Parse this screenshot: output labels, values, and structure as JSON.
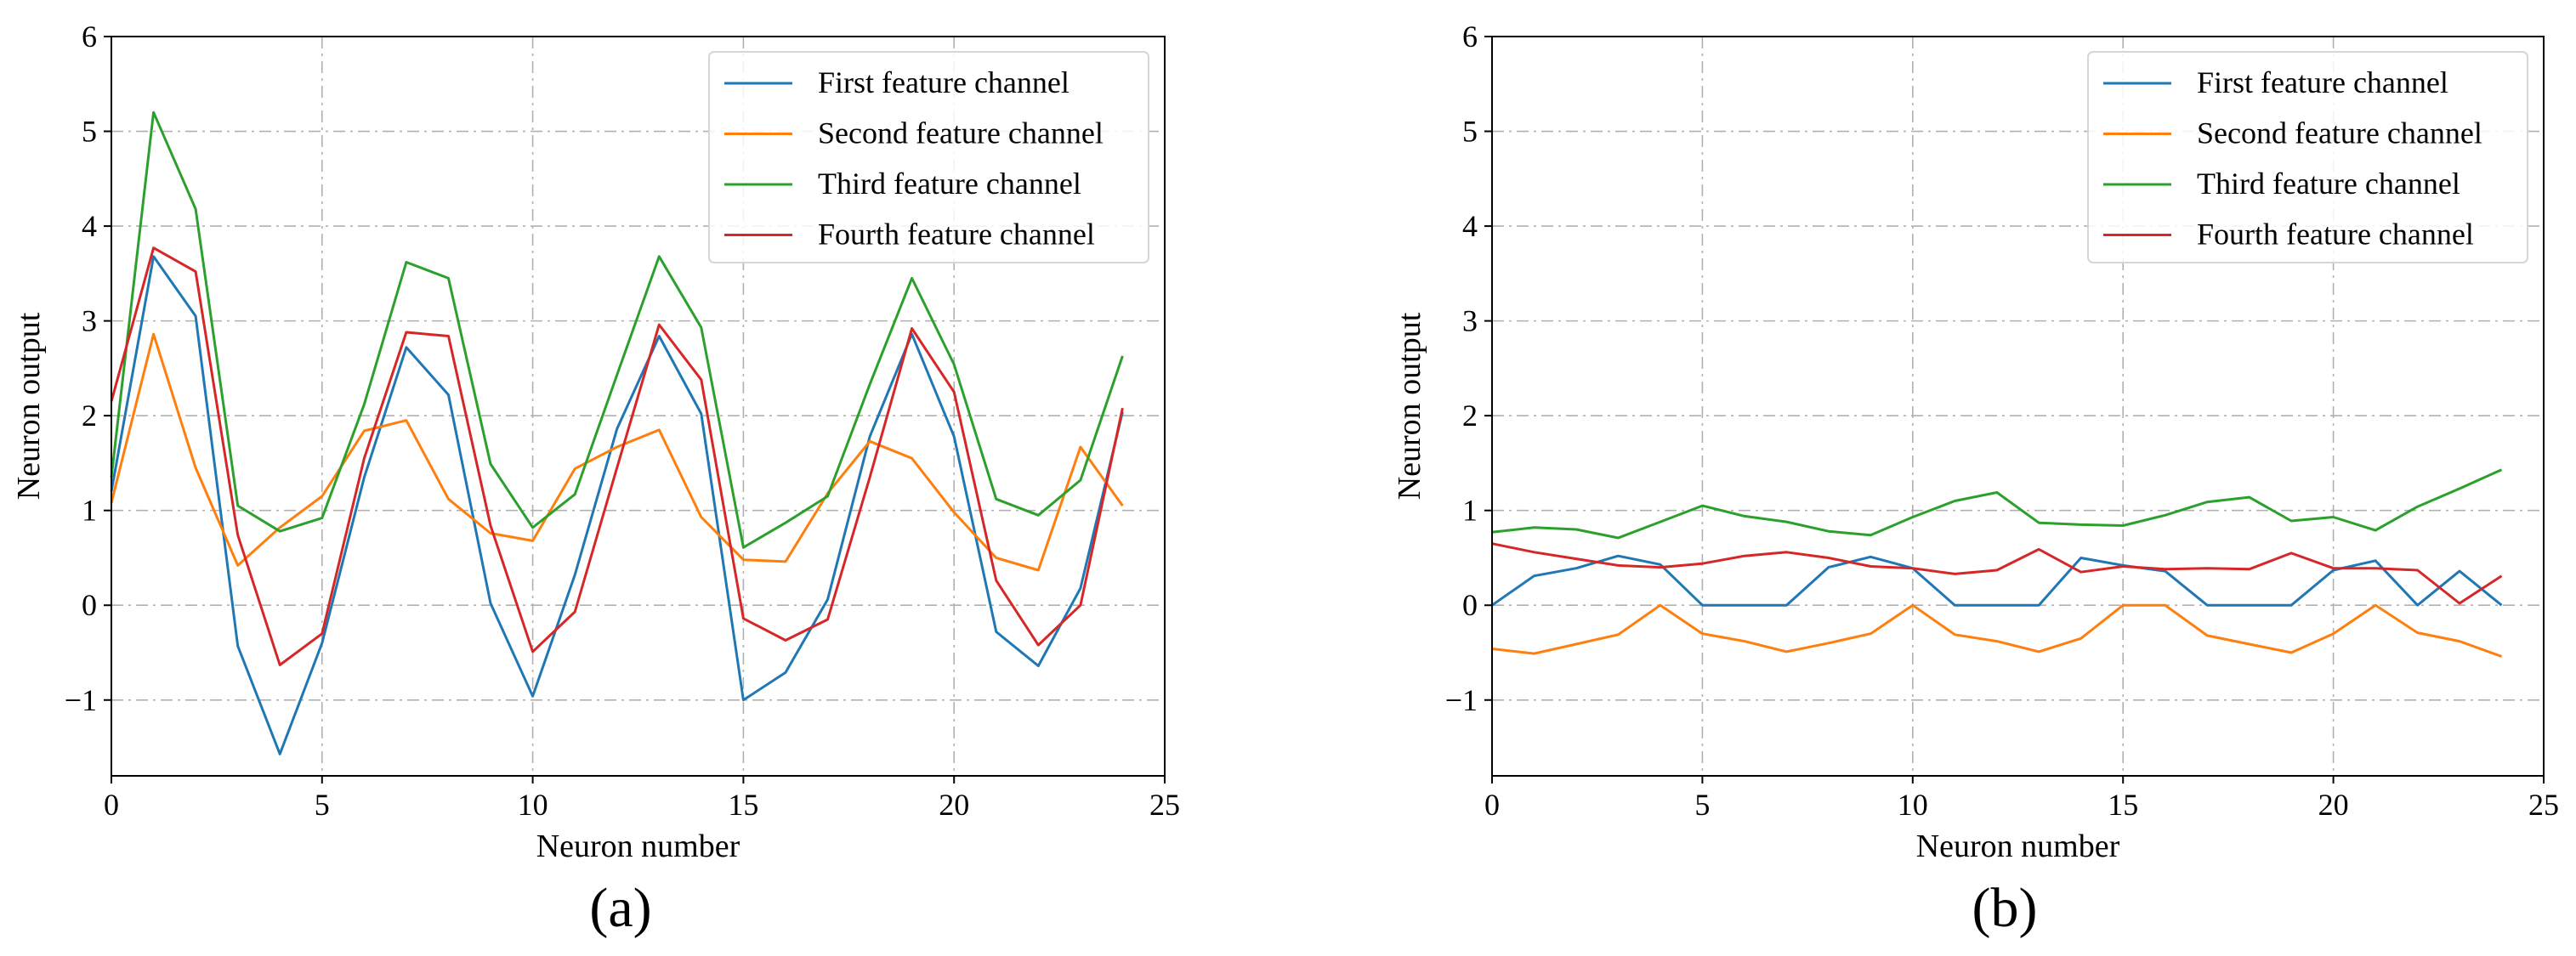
{
  "chart_data": [
    {
      "type": "line",
      "panel_label": "(a)",
      "title": "",
      "xlabel": "Neuron number",
      "ylabel": "Neuron output",
      "xlim": [
        0,
        25
      ],
      "ylim": [
        -1.8,
        6
      ],
      "xticks": [
        0,
        5,
        10,
        15,
        20,
        25
      ],
      "yticks": [
        -1,
        0,
        1,
        2,
        3,
        4,
        5,
        6
      ],
      "grid": true,
      "legend_position": "top-right",
      "x": [
        0,
        1,
        2,
        3,
        4,
        5,
        6,
        7,
        8,
        9,
        10,
        11,
        12,
        13,
        14,
        15,
        16,
        17,
        18,
        19,
        20,
        21,
        22,
        23,
        24
      ],
      "series": [
        {
          "name": "First feature channel",
          "color": "#1f77b4",
          "values": [
            1.2,
            3.68,
            3.05,
            -0.43,
            -1.57,
            -0.4,
            1.35,
            2.72,
            2.22,
            0.02,
            -0.96,
            0.32,
            1.86,
            2.84,
            2.02,
            -1.0,
            -0.71,
            0.06,
            1.78,
            2.86,
            1.78,
            -0.28,
            -0.64,
            0.18,
            2.04
          ]
        },
        {
          "name": "Second feature channel",
          "color": "#ff7f0e",
          "values": [
            1.08,
            2.86,
            1.45,
            0.42,
            0.82,
            1.15,
            1.84,
            1.95,
            1.12,
            0.76,
            0.68,
            1.44,
            1.67,
            1.85,
            0.93,
            0.48,
            0.46,
            1.18,
            1.73,
            1.55,
            0.98,
            0.5,
            0.37,
            1.67,
            1.05
          ]
        },
        {
          "name": "Third feature channel",
          "color": "#2ca02c",
          "values": [
            1.35,
            5.2,
            4.18,
            1.05,
            0.78,
            0.92,
            2.12,
            3.62,
            3.45,
            1.49,
            0.82,
            1.17,
            2.43,
            3.68,
            2.93,
            0.61,
            0.87,
            1.15,
            2.33,
            3.45,
            2.54,
            1.12,
            0.95,
            1.32,
            2.63
          ]
        },
        {
          "name": "Fourth feature channel",
          "color": "#d62728",
          "values": [
            2.15,
            3.77,
            3.52,
            0.74,
            -0.63,
            -0.3,
            1.55,
            2.88,
            2.84,
            0.84,
            -0.49,
            -0.07,
            1.45,
            2.96,
            2.38,
            -0.14,
            -0.37,
            -0.15,
            1.35,
            2.92,
            2.25,
            0.26,
            -0.42,
            0.0,
            2.08
          ]
        }
      ]
    },
    {
      "type": "line",
      "panel_label": "(b)",
      "title": "",
      "xlabel": "Neuron number",
      "ylabel": "Neuron output",
      "xlim": [
        0,
        25
      ],
      "ylim": [
        -1.8,
        6
      ],
      "xticks": [
        0,
        5,
        10,
        15,
        20,
        25
      ],
      "yticks": [
        -1,
        0,
        1,
        2,
        3,
        4,
        5,
        6
      ],
      "grid": true,
      "legend_position": "top-right",
      "x": [
        0,
        1,
        2,
        3,
        4,
        5,
        6,
        7,
        8,
        9,
        10,
        11,
        12,
        13,
        14,
        15,
        16,
        17,
        18,
        19,
        20,
        21,
        22,
        23,
        24
      ],
      "series": [
        {
          "name": "First feature channel",
          "color": "#1f77b4",
          "values": [
            0.0,
            0.31,
            0.39,
            0.52,
            0.43,
            0.0,
            0.0,
            0.0,
            0.4,
            0.51,
            0.39,
            0.0,
            0.0,
            0.0,
            0.5,
            0.42,
            0.36,
            0.0,
            0.0,
            0.0,
            0.37,
            0.47,
            0.0,
            0.36,
            0.0
          ]
        },
        {
          "name": "Second feature channel",
          "color": "#ff7f0e",
          "values": [
            -0.46,
            -0.51,
            -0.41,
            -0.31,
            0.0,
            -0.3,
            -0.38,
            -0.49,
            -0.4,
            -0.3,
            0.0,
            -0.31,
            -0.38,
            -0.49,
            -0.35,
            0.0,
            0.0,
            -0.32,
            -0.41,
            -0.5,
            -0.3,
            0.0,
            -0.29,
            -0.38,
            -0.54
          ]
        },
        {
          "name": "Third feature channel",
          "color": "#2ca02c",
          "values": [
            0.77,
            0.82,
            0.8,
            0.71,
            0.88,
            1.05,
            0.94,
            0.88,
            0.78,
            0.74,
            0.93,
            1.1,
            1.19,
            0.87,
            0.85,
            0.84,
            0.95,
            1.09,
            1.14,
            0.89,
            0.93,
            0.79,
            1.04,
            1.23,
            1.43
          ]
        },
        {
          "name": "Fourth feature channel",
          "color": "#d62728",
          "values": [
            0.65,
            0.56,
            0.49,
            0.42,
            0.4,
            0.44,
            0.52,
            0.56,
            0.5,
            0.41,
            0.39,
            0.33,
            0.37,
            0.59,
            0.35,
            0.41,
            0.38,
            0.39,
            0.38,
            0.55,
            0.39,
            0.39,
            0.37,
            0.02,
            0.31
          ]
        }
      ]
    }
  ]
}
